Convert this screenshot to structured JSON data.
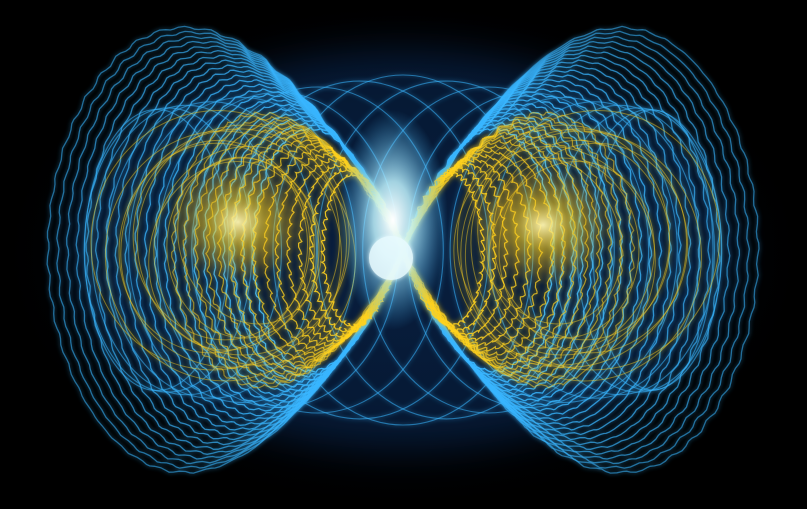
{
  "image": {
    "subject": "toroidal-field-lines",
    "palette": {
      "background": "#000000",
      "outer_field": "#39b6ff",
      "outer_field_glow": "#1f7bff",
      "inner_field": "#ffd21f",
      "inner_field_glow": "#ffb300",
      "core": "#e8fbff"
    },
    "outer_loop_count": 22,
    "inner_loop_count": 14
  }
}
